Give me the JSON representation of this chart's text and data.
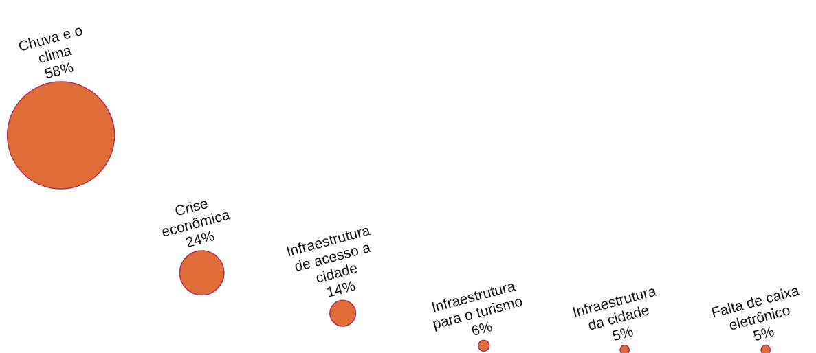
{
  "chart_data": {
    "type": "other",
    "categories": [
      "Chuva e o\nclima",
      "Crise\neconômica",
      "Infraestrutura\nde acesso a\ncidade",
      "Infraestrutura\npara o turismo",
      "Infraestrutura\nda cidade",
      "Falta de caixa\neletrônico"
    ],
    "values": [
      58,
      24,
      14,
      6,
      5,
      5
    ],
    "value_labels": [
      "58%",
      "24%",
      "14%",
      "6%",
      "5%",
      "5%"
    ],
    "color": "#e06c38"
  }
}
